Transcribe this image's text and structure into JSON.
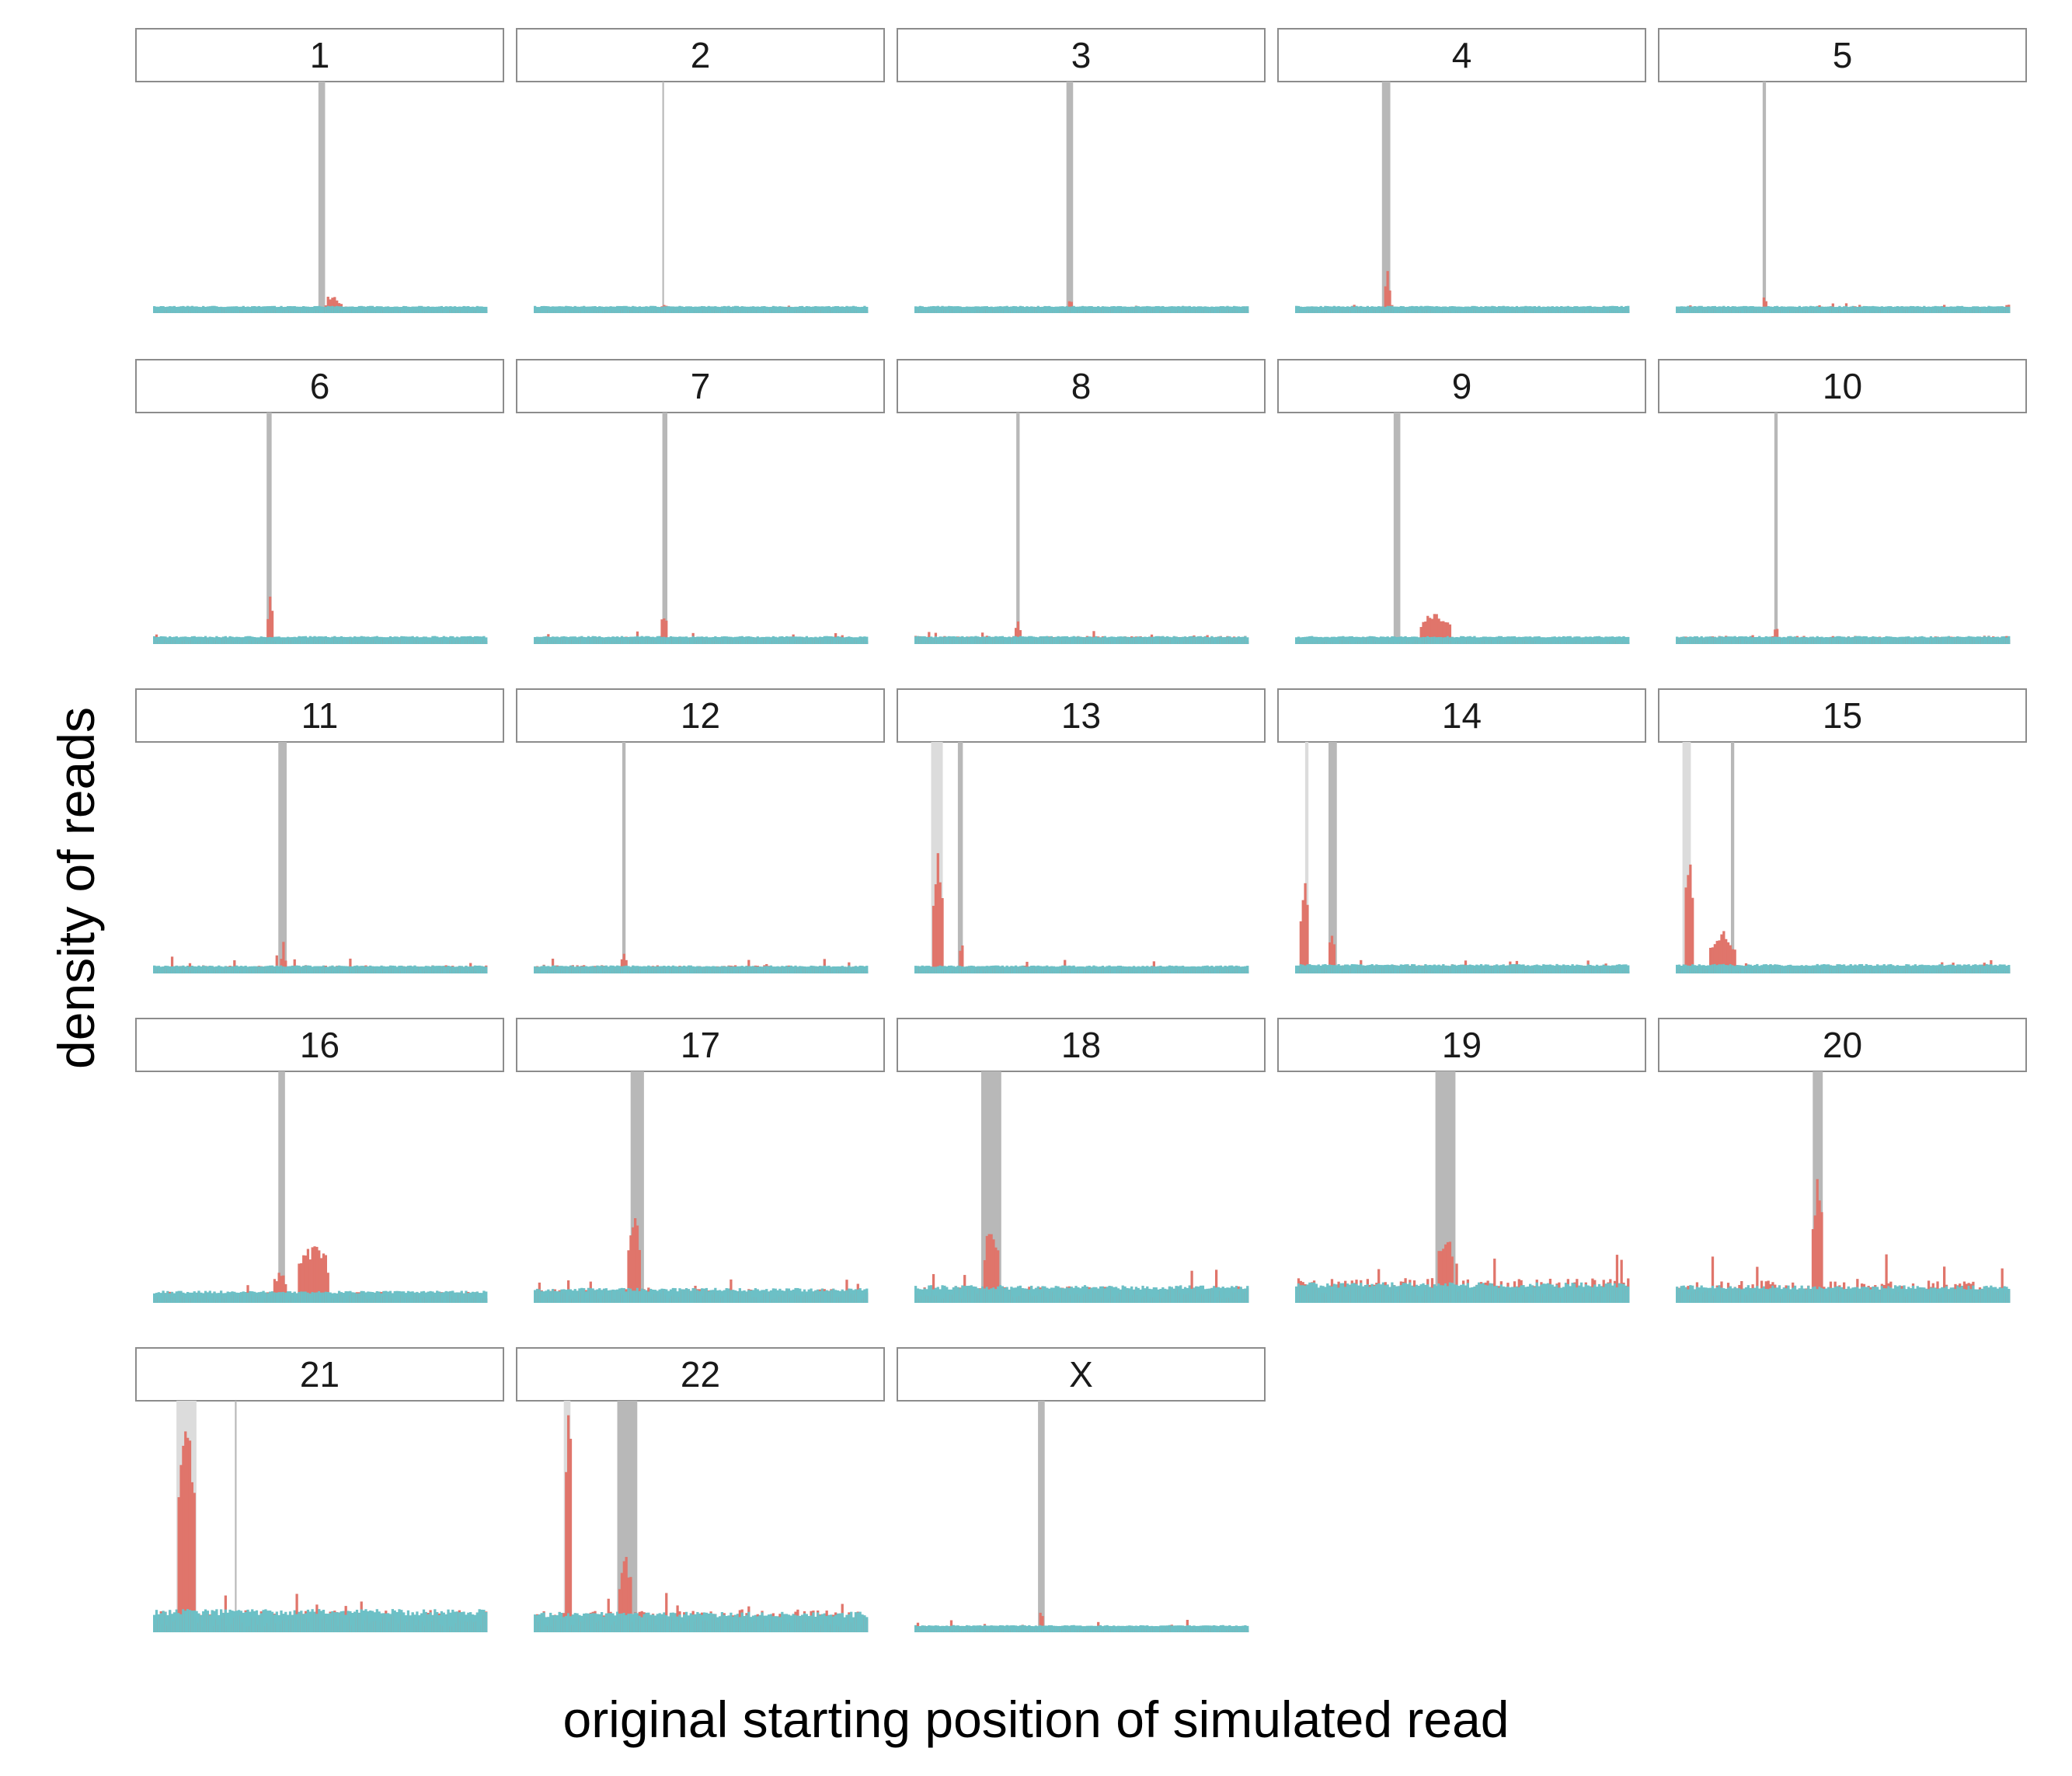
{
  "chart_data": {
    "type": "bar",
    "facet_layout": "5 columns, 5 rows",
    "xlabel": "original starting position of simulated read",
    "ylabel": "density of reads",
    "grid": false,
    "legend": "none",
    "colors": {
      "simulated_reads": "#e0756b",
      "baseline": "#6cc0c6",
      "region_dark": "#b8b8b8",
      "region_light": "#dcdcdc",
      "strip_border": "#8c8c8c"
    },
    "facets": [
      {
        "label": "1",
        "regions": [
          {
            "start": 0.495,
            "end": 0.515,
            "shade": "dark"
          }
        ],
        "baseline": 0.012,
        "noise": 0.012,
        "bumps": [
          {
            "at": 0.54,
            "width": 0.04,
            "height": 0.06
          }
        ]
      },
      {
        "label": "2",
        "regions": [
          {
            "start": 0.385,
            "end": 0.39,
            "shade": "dark"
          }
        ],
        "baseline": 0.012,
        "noise": 0.012,
        "bumps": [
          {
            "at": 0.39,
            "width": 0.01,
            "height": 0.03
          }
        ]
      },
      {
        "label": "3",
        "regions": [
          {
            "start": 0.455,
            "end": 0.475,
            "shade": "dark"
          }
        ],
        "baseline": 0.012,
        "noise": 0.015,
        "bumps": [
          {
            "at": 0.465,
            "width": 0.01,
            "height": 0.04
          }
        ]
      },
      {
        "label": "4",
        "regions": [
          {
            "start": 0.26,
            "end": 0.285,
            "shade": "dark"
          }
        ],
        "baseline": 0.012,
        "noise": 0.015,
        "bumps": [
          {
            "at": 0.275,
            "width": 0.01,
            "height": 0.16
          }
        ]
      },
      {
        "label": "5",
        "regions": [
          {
            "start": 0.26,
            "end": 0.27,
            "shade": "dark"
          }
        ],
        "baseline": 0.012,
        "noise": 0.02,
        "bumps": [
          {
            "at": 0.265,
            "width": 0.01,
            "height": 0.06
          }
        ]
      },
      {
        "label": "6",
        "regions": [
          {
            "start": 0.34,
            "end": 0.355,
            "shade": "dark"
          }
        ],
        "baseline": 0.015,
        "noise": 0.02,
        "bumps": [
          {
            "at": 0.35,
            "width": 0.01,
            "height": 0.17
          }
        ]
      },
      {
        "label": "7",
        "regions": [
          {
            "start": 0.385,
            "end": 0.4,
            "shade": "dark"
          }
        ],
        "baseline": 0.015,
        "noise": 0.025,
        "bumps": [
          {
            "at": 0.39,
            "width": 0.015,
            "height": 0.1
          }
        ]
      },
      {
        "label": "8",
        "regions": [
          {
            "start": 0.305,
            "end": 0.315,
            "shade": "dark"
          }
        ],
        "baseline": 0.015,
        "noise": 0.03,
        "bumps": [
          {
            "at": 0.31,
            "width": 0.01,
            "height": 0.07
          }
        ]
      },
      {
        "label": "9",
        "regions": [
          {
            "start": 0.295,
            "end": 0.315,
            "shade": "dark"
          }
        ],
        "baseline": 0.015,
        "noise": 0.015,
        "bumps": [
          {
            "at": 0.42,
            "width": 0.09,
            "height": 0.12
          }
        ]
      },
      {
        "label": "10",
        "regions": [
          {
            "start": 0.295,
            "end": 0.305,
            "shade": "dark"
          }
        ],
        "baseline": 0.015,
        "noise": 0.03,
        "bumps": [
          {
            "at": 0.3,
            "width": 0.01,
            "height": 0.07
          }
        ]
      },
      {
        "label": "11",
        "regions": [
          {
            "start": 0.375,
            "end": 0.4,
            "shade": "dark"
          }
        ],
        "baseline": 0.015,
        "noise": 0.03,
        "bumps": [
          {
            "at": 0.39,
            "width": 0.015,
            "height": 0.07
          }
        ]
      },
      {
        "label": "12",
        "regions": [
          {
            "start": 0.265,
            "end": 0.275,
            "shade": "dark"
          }
        ],
        "baseline": 0.015,
        "noise": 0.03,
        "bumps": [
          {
            "at": 0.27,
            "width": 0.01,
            "height": 0.07
          }
        ]
      },
      {
        "label": "13",
        "regions": [
          {
            "start": 0.05,
            "end": 0.085,
            "shade": "light"
          },
          {
            "start": 0.13,
            "end": 0.145,
            "shade": "dark"
          }
        ],
        "baseline": 0.015,
        "noise": 0.025,
        "bumps": [
          {
            "at": 0.07,
            "width": 0.03,
            "height": 0.45
          },
          {
            "at": 0.14,
            "width": 0.01,
            "height": 0.1
          }
        ]
      },
      {
        "label": "14",
        "regions": [
          {
            "start": 0.03,
            "end": 0.04,
            "shade": "light"
          },
          {
            "start": 0.1,
            "end": 0.125,
            "shade": "dark"
          }
        ],
        "baseline": 0.02,
        "noise": 0.03,
        "bumps": [
          {
            "at": 0.03,
            "width": 0.02,
            "height": 0.33
          },
          {
            "at": 0.11,
            "width": 0.015,
            "height": 0.14
          }
        ]
      },
      {
        "label": "15",
        "regions": [
          {
            "start": 0.02,
            "end": 0.045,
            "shade": "light"
          },
          {
            "start": 0.165,
            "end": 0.175,
            "shade": "dark"
          }
        ],
        "baseline": 0.02,
        "noise": 0.025,
        "bumps": [
          {
            "at": 0.04,
            "width": 0.02,
            "height": 0.48
          },
          {
            "at": 0.14,
            "width": 0.07,
            "height": 0.15
          }
        ]
      },
      {
        "label": "16",
        "regions": [
          {
            "start": 0.375,
            "end": 0.395,
            "shade": "dark"
          }
        ],
        "baseline": 0.03,
        "noise": 0.04,
        "bumps": [
          {
            "at": 0.38,
            "width": 0.03,
            "height": 0.1
          },
          {
            "at": 0.48,
            "width": 0.09,
            "height": 0.22
          }
        ]
      },
      {
        "label": "17",
        "regions": [
          {
            "start": 0.29,
            "end": 0.33,
            "shade": "dark"
          }
        ],
        "baseline": 0.04,
        "noise": 0.05,
        "bumps": [
          {
            "at": 0.3,
            "width": 0.03,
            "height": 0.32
          }
        ]
      },
      {
        "label": "18",
        "regions": [
          {
            "start": 0.2,
            "end": 0.26,
            "shade": "dark"
          }
        ],
        "baseline": 0.05,
        "noise": 0.06,
        "bumps": [
          {
            "at": 0.23,
            "width": 0.035,
            "height": 0.26
          }
        ]
      },
      {
        "label": "19",
        "regions": [
          {
            "start": 0.42,
            "end": 0.48,
            "shade": "dark"
          }
        ],
        "baseline": 0.06,
        "noise": 0.09,
        "bumps": [
          {
            "at": 0.45,
            "width": 0.04,
            "height": 0.2
          }
        ]
      },
      {
        "label": "20",
        "regions": [
          {
            "start": 0.41,
            "end": 0.44,
            "shade": "dark"
          }
        ],
        "baseline": 0.05,
        "noise": 0.08,
        "bumps": [
          {
            "at": 0.425,
            "width": 0.025,
            "height": 0.42
          }
        ]
      },
      {
        "label": "21",
        "regions": [
          {
            "start": 0.07,
            "end": 0.13,
            "shade": "light"
          },
          {
            "start": 0.245,
            "end": 0.25,
            "shade": "dark"
          }
        ],
        "baseline": 0.07,
        "noise": 0.08,
        "bumps": [
          {
            "at": 0.1,
            "width": 0.05,
            "height": 0.9
          }
        ]
      },
      {
        "label": "22",
        "regions": [
          {
            "start": 0.09,
            "end": 0.11,
            "shade": "light"
          },
          {
            "start": 0.25,
            "end": 0.31,
            "shade": "dark"
          }
        ],
        "baseline": 0.06,
        "noise": 0.08,
        "bumps": [
          {
            "at": 0.105,
            "width": 0.015,
            "height": 0.9
          },
          {
            "at": 0.275,
            "width": 0.035,
            "height": 0.25
          }
        ]
      },
      {
        "label": "X",
        "regions": [
          {
            "start": 0.37,
            "end": 0.39,
            "shade": "dark"
          }
        ],
        "baseline": 0.012,
        "noise": 0.02,
        "bumps": [
          {
            "at": 0.38,
            "width": 0.01,
            "height": 0.07
          }
        ]
      }
    ]
  }
}
